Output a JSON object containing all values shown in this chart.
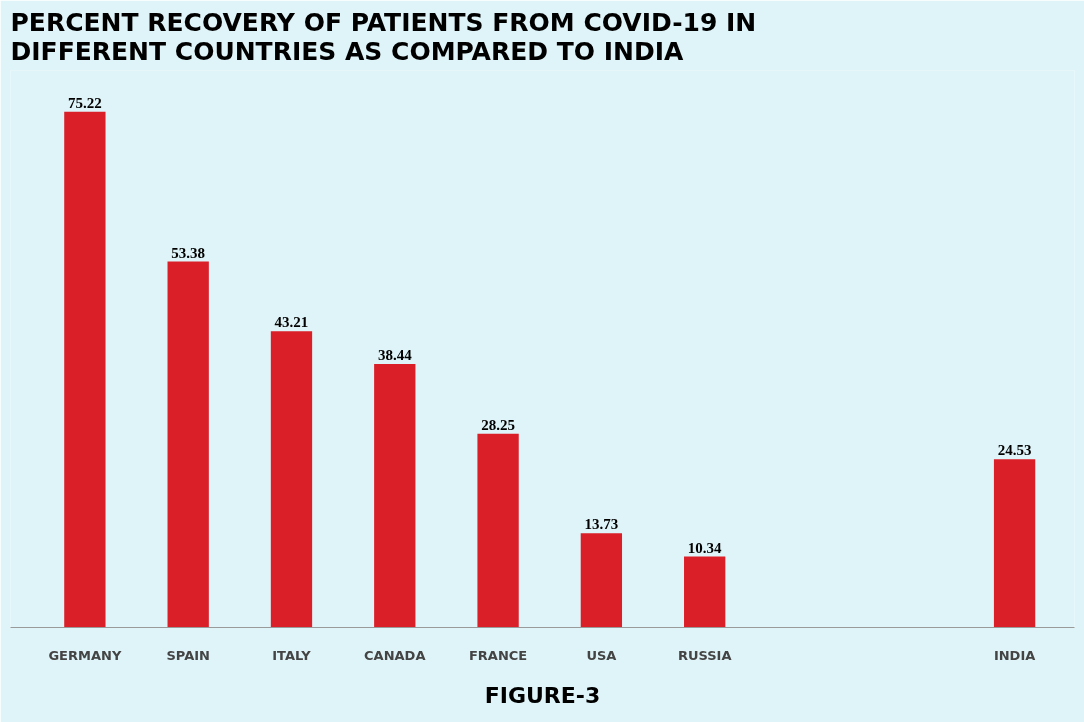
{
  "chart_data": {
    "type": "bar",
    "title": "PERCENT RECOVERY OF PATIENTS FROM COVID-19 IN DIFFERENT COUNTRIES AS COMPARED TO INDIA",
    "categories": [
      "GERMANY",
      "SPAIN",
      "ITALY",
      "CANADA",
      "FRANCE",
      "USA",
      "RUSSIA",
      null,
      null,
      "INDIA"
    ],
    "values": [
      75.22,
      53.38,
      43.21,
      38.44,
      28.25,
      13.73,
      10.34,
      null,
      null,
      24.53
    ],
    "color": "#da1f28",
    "data_labels": true,
    "grid": false,
    "annotations": [
      "FIGURE-3"
    ]
  }
}
